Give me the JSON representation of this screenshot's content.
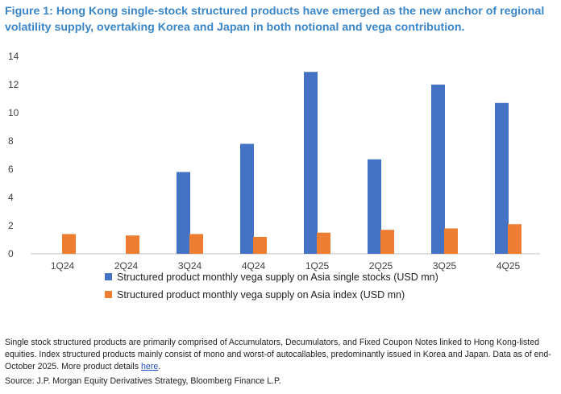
{
  "figure": {
    "title": "Figure 1: Hong Kong single-stock structured products have emerged as the new anchor of regional volatility supply, overtaking Korea and Japan in both notional and vega contribution."
  },
  "chart_data": {
    "type": "bar",
    "title": "",
    "xlabel": "",
    "ylabel": "",
    "ylim": [
      0,
      14
    ],
    "yticks": [
      0,
      2,
      4,
      6,
      8,
      10,
      12,
      14
    ],
    "grid": false,
    "legend_position": "bottom",
    "categories": [
      "1Q24",
      "2Q24",
      "3Q24",
      "4Q24",
      "1Q25",
      "2Q25",
      "3Q25",
      "4Q25"
    ],
    "series": [
      {
        "name": "Structured product monthly vega supply on Asia single stocks (USD mn)",
        "color": "#4472c4",
        "values": [
          0,
          0,
          5.8,
          7.8,
          12.9,
          6.7,
          12.0,
          10.7
        ]
      },
      {
        "name": "Structured product monthly vega supply on Asia index (USD mn)",
        "color": "#ed7d31",
        "values": [
          1.4,
          1.3,
          1.4,
          1.2,
          1.5,
          1.7,
          1.8,
          2.1
        ]
      }
    ]
  },
  "notes": {
    "text": "Single stock structured products are primarily comprised of Accumulators, Decumulators, and Fixed Coupon Notes linked to Hong Kong-listed equities. Index structured products mainly consist of mono and worst-of autocallables, predominantly issued in Korea and Japan. Data as of end-October 2025. More product details ",
    "link_text": "here",
    "end": "."
  },
  "source": "Source: J.P. Morgan Equity Derivatives Strategy, Bloomberg Finance L.P."
}
